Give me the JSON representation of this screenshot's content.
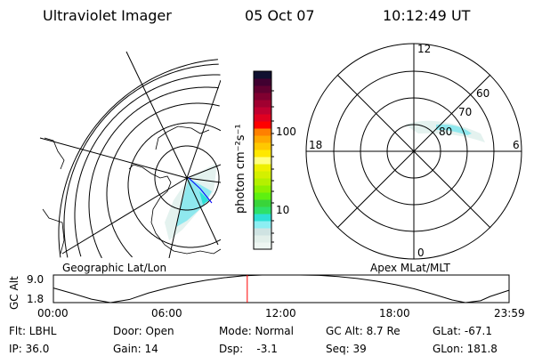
{
  "header": {
    "instrument": "Ultraviolet Imager",
    "date": "05 Oct 07",
    "time": "10:12:49 UT"
  },
  "left_map": {
    "label": "Geographic Lat/Lon",
    "aurora_color": "#8fe8ee"
  },
  "colorbar": {
    "unit_label": "photon cm⁻²s⁻¹",
    "tick_labels": [
      "100",
      "10"
    ],
    "scale": "log",
    "colors": [
      "#eef6f2",
      "#e2efea",
      "#cfe3e2",
      "#8deef2",
      "#2de0d6",
      "#2ee06a",
      "#39d43a",
      "#5ef010",
      "#8cf000",
      "#b4f000",
      "#d4f000",
      "#eef000",
      "#ffff80",
      "#ffe800",
      "#ffc800",
      "#ffa800",
      "#ff8000",
      "#ff0000",
      "#e00020",
      "#c00030",
      "#a00030",
      "#800030",
      "#600030",
      "#400030",
      "#101030"
    ]
  },
  "right_polar": {
    "label": "Apex MLat/MLT",
    "mlt_labels": [
      "12",
      "18",
      "6",
      "0"
    ],
    "lat_labels": [
      "60",
      "70",
      "80"
    ]
  },
  "altitude_plot": {
    "ylabel": "GC Alt",
    "yticks": [
      "9.0",
      "1.8"
    ],
    "ylim": [
      1.8,
      9.0
    ],
    "xticks": [
      "00:00",
      "06:00",
      "12:00",
      "18:00",
      "23:59"
    ],
    "current_time_hours": 10.21,
    "marker_color": "#ff0000",
    "curve": [
      [
        0,
        5.6
      ],
      [
        1,
        4.2
      ],
      [
        2,
        2.7
      ],
      [
        3,
        1.8
      ],
      [
        4,
        2.6
      ],
      [
        5,
        4.3
      ],
      [
        6,
        5.6
      ],
      [
        7,
        6.7
      ],
      [
        8,
        7.6
      ],
      [
        9,
        8.3
      ],
      [
        10,
        8.8
      ],
      [
        11,
        9.0
      ],
      [
        12,
        9.0
      ],
      [
        13,
        9.0
      ],
      [
        14,
        8.9
      ],
      [
        15,
        8.6
      ],
      [
        16,
        8.1
      ],
      [
        17,
        7.4
      ],
      [
        18,
        6.5
      ],
      [
        19,
        5.4
      ],
      [
        20,
        4.0
      ],
      [
        21,
        2.5
      ],
      [
        21.7,
        1.8
      ],
      [
        22.5,
        2.3
      ],
      [
        23,
        3.4
      ],
      [
        23.98,
        5.0
      ]
    ]
  },
  "info": {
    "row1": [
      "Flt: LBHL",
      "Door: Open",
      "Mode: Normal",
      "GC Alt: 8.7 Re",
      "GLat: -67.1"
    ],
    "row2": [
      "IP: 36.0",
      "Gain: 14",
      "Dsp:    -3.1",
      "Seq: 39",
      "GLon: 181.8"
    ]
  }
}
